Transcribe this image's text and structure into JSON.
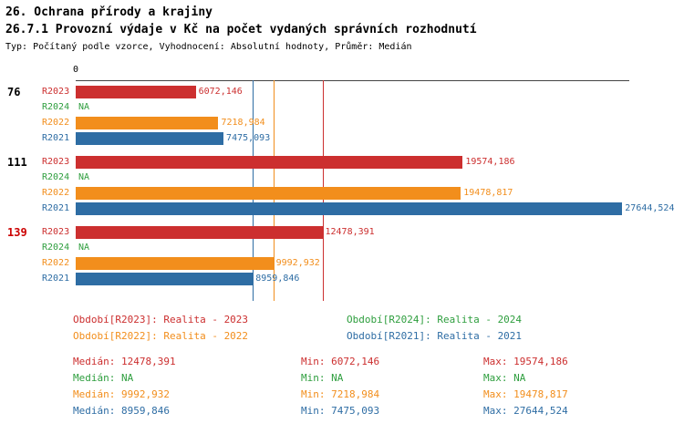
{
  "header": {
    "line1": "26. Ochrana přírody a krajiny",
    "line2": "26.7.1 Provozní výdaje v Kč na počet vydaných správních rozhodnutí",
    "line3": "Typ: Počítaný podle vzorce, Vyhodnocení: Absolutní hodnoty, Průměr: Medián"
  },
  "colors": {
    "R2023": "#cc2f2f",
    "R2024": "#2e9e3e",
    "R2022": "#f28e1c",
    "R2021": "#2e6da4",
    "highlight": "#cc0000",
    "axis": "#444444"
  },
  "chart_data": {
    "type": "bar",
    "orientation": "horizontal",
    "title": "26.7.1 Provozní výdaje v Kč na počet vydaných správních rozhodnutí",
    "axis": {
      "zero_label": "0",
      "min": 0,
      "max": 28000,
      "grid": false
    },
    "series_order": [
      "R2023",
      "R2024",
      "R2022",
      "R2021"
    ],
    "categories": [
      "76",
      "111",
      "139"
    ],
    "groups": [
      {
        "id": "76",
        "highlighted": false,
        "bars": [
          {
            "series": "R2023",
            "value": 6072.146,
            "display": "6072,146"
          },
          {
            "series": "R2024",
            "value": null,
            "display": "NA"
          },
          {
            "series": "R2022",
            "value": 7218.984,
            "display": "7218,984"
          },
          {
            "series": "R2021",
            "value": 7475.093,
            "display": "7475,093"
          }
        ]
      },
      {
        "id": "111",
        "highlighted": false,
        "bars": [
          {
            "series": "R2023",
            "value": 19574.186,
            "display": "19574,186"
          },
          {
            "series": "R2024",
            "value": null,
            "display": "NA"
          },
          {
            "series": "R2022",
            "value": 19478.817,
            "display": "19478,817"
          },
          {
            "series": "R2021",
            "value": 27644.524,
            "display": "27644,524"
          }
        ]
      },
      {
        "id": "139",
        "highlighted": true,
        "bars": [
          {
            "series": "R2023",
            "value": 12478.391,
            "display": "12478,391"
          },
          {
            "series": "R2024",
            "value": null,
            "display": "NA"
          },
          {
            "series": "R2022",
            "value": 9992.932,
            "display": "9992,932"
          },
          {
            "series": "R2021",
            "value": 8959.846,
            "display": "8959,846"
          }
        ]
      }
    ],
    "median_lines": [
      {
        "series": "R2023",
        "value": 12478.391
      },
      {
        "series": "R2022",
        "value": 9992.932
      },
      {
        "series": "R2021",
        "value": 8959.846
      }
    ]
  },
  "legend": [
    {
      "series": "R2023",
      "text": "Období[R2023]: Realita - 2023"
    },
    {
      "series": "R2024",
      "text": "Období[R2024]: Realita - 2024"
    },
    {
      "series": "R2022",
      "text": "Období[R2022]: Realita - 2022"
    },
    {
      "series": "R2021",
      "text": "Období[R2021]: Realita - 2021"
    }
  ],
  "stats_labels": {
    "median": "Medián:",
    "min": "Min:",
    "max": "Max:"
  },
  "stats": [
    {
      "series": "R2023",
      "median": "12478,391",
      "min": "6072,146",
      "max": "19574,186"
    },
    {
      "series": "R2024",
      "median": "NA",
      "min": "NA",
      "max": "NA"
    },
    {
      "series": "R2022",
      "median": "9992,932",
      "min": "7218,984",
      "max": "19478,817"
    },
    {
      "series": "R2021",
      "median": "8959,846",
      "min": "7475,093",
      "max": "27644,524"
    }
  ]
}
